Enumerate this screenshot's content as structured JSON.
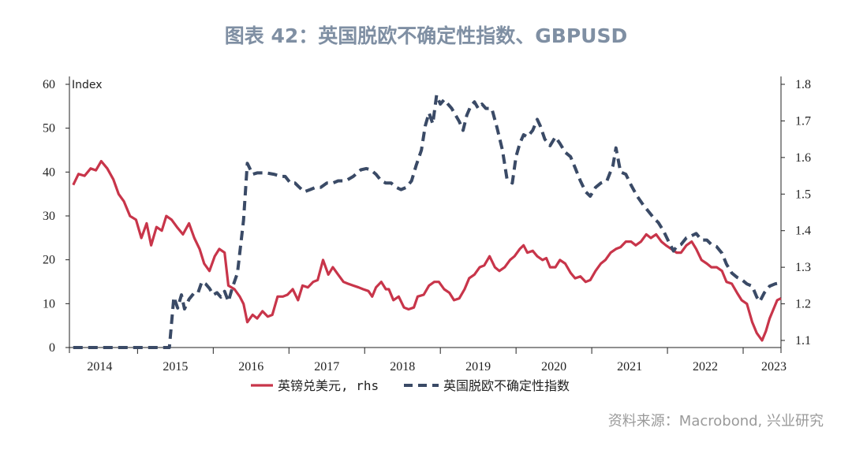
{
  "title": "图表 42：英国脱欧不确定性指数、GBPUSD",
  "source": "资料来源：Macrobond, 兴业研究",
  "chart_data": {
    "type": "line",
    "left_axis": {
      "unit_label": "Index",
      "ylim": [
        0,
        60
      ],
      "ticks": [
        "0",
        "10",
        "20",
        "30",
        "40",
        "50",
        "60"
      ]
    },
    "right_axis": {
      "ylim": [
        1.07,
        1.82
      ],
      "ticks": [
        "1.1",
        "1.2",
        "1.3",
        "1.4",
        "1.5",
        "1.6",
        "1.7",
        "1.8"
      ]
    },
    "x_axis": {
      "start": 2013.6,
      "end": 2023.0,
      "labels": [
        "2014",
        "2015",
        "2016",
        "2017",
        "2018",
        "2019",
        "2020",
        "2021",
        "2022",
        "2023"
      ]
    },
    "grid": false,
    "legend_position": "bottom-center",
    "series": [
      {
        "name": "英镑兑美元, rhs",
        "axis": "right",
        "color": "#c8354a",
        "style": "solid",
        "points": [
          [
            2013.65,
            1.525
          ],
          [
            2013.72,
            1.555
          ],
          [
            2013.8,
            1.55
          ],
          [
            2013.88,
            1.57
          ],
          [
            2013.95,
            1.565
          ],
          [
            2014.02,
            1.59
          ],
          [
            2014.1,
            1.57
          ],
          [
            2014.18,
            1.54
          ],
          [
            2014.25,
            1.5
          ],
          [
            2014.32,
            1.48
          ],
          [
            2014.4,
            1.44
          ],
          [
            2014.48,
            1.43
          ],
          [
            2014.55,
            1.38
          ],
          [
            2014.62,
            1.42
          ],
          [
            2014.68,
            1.36
          ],
          [
            2014.75,
            1.41
          ],
          [
            2014.82,
            1.4
          ],
          [
            2014.88,
            1.44
          ],
          [
            2014.95,
            1.43
          ],
          [
            2015.02,
            1.41
          ],
          [
            2015.1,
            1.39
          ],
          [
            2015.18,
            1.42
          ],
          [
            2015.25,
            1.38
          ],
          [
            2015.32,
            1.35
          ],
          [
            2015.38,
            1.31
          ],
          [
            2015.45,
            1.29
          ],
          [
            2015.52,
            1.33
          ],
          [
            2015.58,
            1.35
          ],
          [
            2015.65,
            1.34
          ],
          [
            2015.7,
            1.25
          ],
          [
            2015.78,
            1.24
          ],
          [
            2015.85,
            1.22
          ],
          [
            2015.9,
            1.2
          ],
          [
            2015.95,
            1.15
          ],
          [
            2016.02,
            1.17
          ],
          [
            2016.08,
            1.16
          ],
          [
            2016.15,
            1.18
          ],
          [
            2016.22,
            1.165
          ],
          [
            2016.28,
            1.17
          ],
          [
            2016.35,
            1.22
          ],
          [
            2016.42,
            1.22
          ],
          [
            2016.48,
            1.225
          ],
          [
            2016.55,
            1.24
          ],
          [
            2016.62,
            1.21
          ],
          [
            2016.68,
            1.25
          ],
          [
            2016.75,
            1.245
          ],
          [
            2016.82,
            1.26
          ],
          [
            2016.88,
            1.265
          ],
          [
            2016.95,
            1.32
          ],
          [
            2017.02,
            1.28
          ],
          [
            2017.08,
            1.3
          ],
          [
            2017.15,
            1.28
          ],
          [
            2017.22,
            1.26
          ],
          [
            2017.28,
            1.255
          ],
          [
            2017.35,
            1.25
          ],
          [
            2017.42,
            1.245
          ],
          [
            2017.48,
            1.24
          ],
          [
            2017.55,
            1.235
          ],
          [
            2017.6,
            1.22
          ],
          [
            2017.65,
            1.245
          ],
          [
            2017.72,
            1.26
          ],
          [
            2017.78,
            1.24
          ],
          [
            2017.82,
            1.24
          ],
          [
            2017.88,
            1.21
          ],
          [
            2017.95,
            1.22
          ],
          [
            2018.02,
            1.19
          ],
          [
            2018.08,
            1.185
          ],
          [
            2018.15,
            1.19
          ],
          [
            2018.2,
            1.22
          ],
          [
            2018.28,
            1.225
          ],
          [
            2018.35,
            1.25
          ],
          [
            2018.42,
            1.26
          ],
          [
            2018.48,
            1.26
          ],
          [
            2018.55,
            1.24
          ],
          [
            2018.62,
            1.23
          ],
          [
            2018.68,
            1.21
          ],
          [
            2018.75,
            1.215
          ],
          [
            2018.82,
            1.24
          ],
          [
            2018.88,
            1.27
          ],
          [
            2018.95,
            1.28
          ],
          [
            2019.02,
            1.3
          ],
          [
            2019.08,
            1.305
          ],
          [
            2019.15,
            1.33
          ],
          [
            2019.22,
            1.3
          ],
          [
            2019.28,
            1.29
          ],
          [
            2019.35,
            1.3
          ],
          [
            2019.42,
            1.32
          ],
          [
            2019.48,
            1.33
          ],
          [
            2019.55,
            1.35
          ],
          [
            2019.6,
            1.36
          ],
          [
            2019.65,
            1.34
          ],
          [
            2019.72,
            1.345
          ],
          [
            2019.78,
            1.33
          ],
          [
            2019.85,
            1.32
          ],
          [
            2019.9,
            1.325
          ],
          [
            2019.95,
            1.3
          ],
          [
            2020.02,
            1.3
          ],
          [
            2020.08,
            1.32
          ],
          [
            2020.15,
            1.31
          ],
          [
            2020.22,
            1.285
          ],
          [
            2020.28,
            1.27
          ],
          [
            2020.35,
            1.275
          ],
          [
            2020.42,
            1.26
          ],
          [
            2020.48,
            1.265
          ],
          [
            2020.55,
            1.29
          ],
          [
            2020.62,
            1.31
          ],
          [
            2020.68,
            1.32
          ],
          [
            2020.75,
            1.34
          ],
          [
            2020.82,
            1.35
          ],
          [
            2020.88,
            1.355
          ],
          [
            2020.95,
            1.37
          ],
          [
            2021.02,
            1.37
          ],
          [
            2021.08,
            1.36
          ],
          [
            2021.15,
            1.37
          ],
          [
            2021.22,
            1.39
          ],
          [
            2021.28,
            1.38
          ],
          [
            2021.35,
            1.39
          ],
          [
            2021.42,
            1.37
          ],
          [
            2021.48,
            1.36
          ],
          [
            2021.55,
            1.35
          ],
          [
            2021.62,
            1.34
          ],
          [
            2021.68,
            1.34
          ],
          [
            2021.75,
            1.36
          ],
          [
            2021.82,
            1.37
          ],
          [
            2021.88,
            1.35
          ],
          [
            2021.95,
            1.32
          ],
          [
            2022.02,
            1.31
          ],
          [
            2022.08,
            1.3
          ],
          [
            2022.15,
            1.3
          ],
          [
            2022.22,
            1.29
          ],
          [
            2022.28,
            1.26
          ],
          [
            2022.35,
            1.255
          ],
          [
            2022.42,
            1.23
          ],
          [
            2022.48,
            1.21
          ],
          [
            2022.55,
            1.2
          ],
          [
            2022.62,
            1.15
          ],
          [
            2022.68,
            1.12
          ],
          [
            2022.75,
            1.1
          ],
          [
            2022.8,
            1.125
          ],
          [
            2022.85,
            1.16
          ],
          [
            2022.9,
            1.185
          ],
          [
            2022.95,
            1.21
          ],
          [
            2023.0,
            1.215
          ]
        ]
      },
      {
        "name": "英国脱欧不确定性指数",
        "axis": "left",
        "color": "#3a4a66",
        "style": "dashed",
        "points": [
          [
            2013.65,
            0
          ],
          [
            2014.92,
            0
          ],
          [
            2014.98,
            11.5
          ],
          [
            2015.03,
            9.0
          ],
          [
            2015.08,
            12.0
          ],
          [
            2015.12,
            8.8
          ],
          [
            2015.18,
            11.0
          ],
          [
            2015.25,
            12.5
          ],
          [
            2015.3,
            12.5
          ],
          [
            2015.35,
            15.0
          ],
          [
            2015.4,
            14.5
          ],
          [
            2015.45,
            13.5
          ],
          [
            2015.5,
            12.0
          ],
          [
            2015.55,
            12.5
          ],
          [
            2015.6,
            11.5
          ],
          [
            2015.65,
            12.8
          ],
          [
            2015.7,
            10.5
          ],
          [
            2015.75,
            13.5
          ],
          [
            2015.82,
            17.0
          ],
          [
            2015.9,
            29.0
          ],
          [
            2015.95,
            42.0
          ],
          [
            2016.02,
            39.5
          ],
          [
            2016.08,
            39.8
          ],
          [
            2016.2,
            39.8
          ],
          [
            2016.3,
            39.5
          ],
          [
            2016.4,
            39.0
          ],
          [
            2016.45,
            39.0
          ],
          [
            2016.52,
            37.5
          ],
          [
            2016.58,
            37.5
          ],
          [
            2016.62,
            36.8
          ],
          [
            2016.7,
            35.5
          ],
          [
            2016.78,
            36.0
          ],
          [
            2016.85,
            36.5
          ],
          [
            2016.92,
            36.5
          ],
          [
            2017.0,
            37.5
          ],
          [
            2017.08,
            37.5
          ],
          [
            2017.15,
            38.0
          ],
          [
            2017.25,
            38.0
          ],
          [
            2017.35,
            39.0
          ],
          [
            2017.45,
            40.5
          ],
          [
            2017.52,
            40.8
          ],
          [
            2017.58,
            40.5
          ],
          [
            2017.65,
            39.5
          ],
          [
            2017.72,
            38.0
          ],
          [
            2017.78,
            37.5
          ],
          [
            2017.85,
            37.5
          ],
          [
            2017.92,
            36.5
          ],
          [
            2017.98,
            36.0
          ],
          [
            2018.05,
            36.5
          ],
          [
            2018.12,
            38.0
          ],
          [
            2018.18,
            41.5
          ],
          [
            2018.25,
            45.0
          ],
          [
            2018.3,
            50.5
          ],
          [
            2018.35,
            53.5
          ],
          [
            2018.4,
            51.0
          ],
          [
            2018.45,
            57.5
          ],
          [
            2018.5,
            55.5
          ],
          [
            2018.55,
            56.5
          ],
          [
            2018.6,
            55.5
          ],
          [
            2018.65,
            54.5
          ],
          [
            2018.7,
            53.0
          ],
          [
            2018.75,
            51.5
          ],
          [
            2018.8,
            49.5
          ],
          [
            2018.85,
            53.0
          ],
          [
            2018.9,
            55.0
          ],
          [
            2018.95,
            56.0
          ],
          [
            2019.0,
            54.5
          ],
          [
            2019.05,
            55.5
          ],
          [
            2019.1,
            54.5
          ],
          [
            2019.18,
            54.5
          ],
          [
            2019.25,
            50.0
          ],
          [
            2019.32,
            45.0
          ],
          [
            2019.38,
            38.5
          ],
          [
            2019.45,
            37.5
          ],
          [
            2019.5,
            43.5
          ],
          [
            2019.55,
            46.5
          ],
          [
            2019.6,
            48.5
          ],
          [
            2019.65,
            48.0
          ],
          [
            2019.72,
            49.5
          ],
          [
            2019.78,
            52.0
          ],
          [
            2019.82,
            50.5
          ],
          [
            2019.88,
            47.5
          ],
          [
            2019.95,
            46.0
          ],
          [
            2020.02,
            48.0
          ],
          [
            2020.08,
            46.5
          ],
          [
            2020.15,
            44.5
          ],
          [
            2020.22,
            43.5
          ],
          [
            2020.28,
            41.0
          ],
          [
            2020.35,
            38.0
          ],
          [
            2020.42,
            35.5
          ],
          [
            2020.48,
            34.5
          ],
          [
            2020.55,
            36.5
          ],
          [
            2020.62,
            37.5
          ],
          [
            2020.7,
            38.0
          ],
          [
            2020.78,
            41.5
          ],
          [
            2020.82,
            45.5
          ],
          [
            2020.88,
            40.0
          ],
          [
            2020.95,
            39.5
          ],
          [
            2021.02,
            37.0
          ],
          [
            2021.1,
            34.5
          ],
          [
            2021.18,
            32.5
          ],
          [
            2021.25,
            31.0
          ],
          [
            2021.32,
            29.5
          ],
          [
            2021.38,
            28.5
          ],
          [
            2021.45,
            26.5
          ],
          [
            2021.52,
            24.0
          ],
          [
            2021.58,
            22.0
          ],
          [
            2021.62,
            23.0
          ],
          [
            2021.68,
            23.5
          ],
          [
            2021.75,
            25.0
          ],
          [
            2021.82,
            25.5
          ],
          [
            2021.88,
            26.0
          ],
          [
            2021.95,
            24.5
          ],
          [
            2022.02,
            24.5
          ],
          [
            2022.08,
            23.5
          ],
          [
            2022.15,
            23.0
          ],
          [
            2022.22,
            21.5
          ],
          [
            2022.28,
            19.0
          ],
          [
            2022.35,
            17.0
          ],
          [
            2022.42,
            16.0
          ],
          [
            2022.48,
            15.5
          ],
          [
            2022.55,
            14.5
          ],
          [
            2022.62,
            14.0
          ],
          [
            2022.68,
            11.5
          ],
          [
            2022.72,
            10.5
          ],
          [
            2022.78,
            12.5
          ],
          [
            2022.85,
            14.0
          ],
          [
            2022.92,
            14.5
          ],
          [
            2023.0,
            14.8
          ]
        ]
      }
    ]
  }
}
